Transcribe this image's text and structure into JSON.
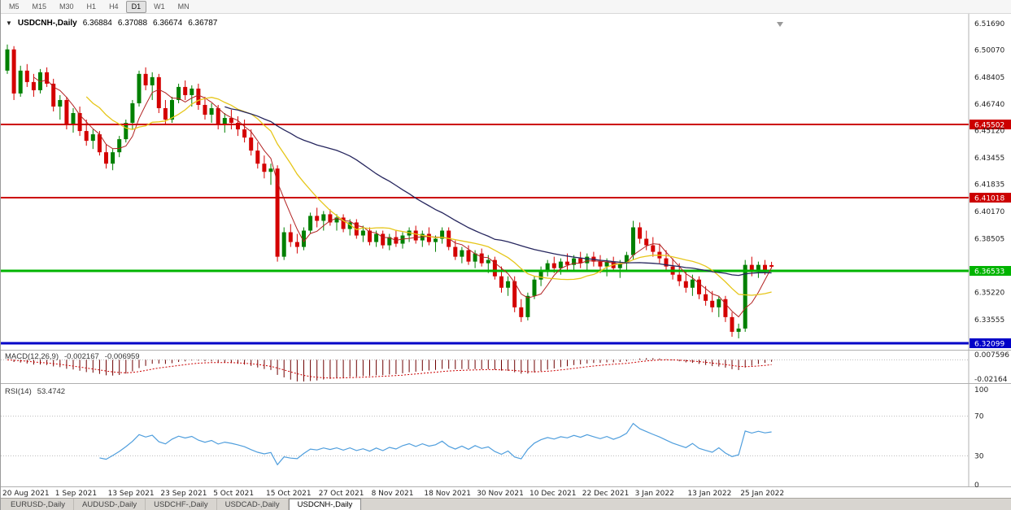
{
  "toolbar": {
    "timeframes": [
      "M5",
      "M15",
      "M30",
      "H1",
      "H4",
      "D1",
      "W1",
      "MN"
    ],
    "active": "D1"
  },
  "quote_header": {
    "expander": "▼",
    "symbol": "USDCNH-,Daily",
    "open": "6.36884",
    "high": "6.37088",
    "low": "6.36674",
    "close": "6.36787"
  },
  "price_axis": {
    "ticks": [
      "6.51690",
      "6.50070",
      "6.48405",
      "6.46740",
      "6.45120",
      "6.43455",
      "6.41835",
      "6.40170",
      "6.38505",
      "6.35220",
      "6.33555"
    ]
  },
  "indicators": {
    "macd": {
      "label": "MACD(12,26,9)",
      "value_main": "-0.002167",
      "value_signal": "-0.006959",
      "axis_max": "0.007596",
      "axis_min": "-0.02164"
    },
    "rsi": {
      "label": "RSI(14)",
      "value": "53.4742",
      "axis_labels": [
        "100",
        "70",
        "30",
        "0"
      ],
      "levels": [
        70,
        30
      ]
    }
  },
  "tabs": {
    "items": [
      "EURUSD-,Daily",
      "AUDUSD-,Daily",
      "USDCHF-,Daily",
      "USDCAD-,Daily",
      "USDCNH-,Daily"
    ],
    "active": "USDCNH-,Daily"
  },
  "chart_data": {
    "type": "candlestick",
    "symbol": "USDCNH",
    "timeframe": "Daily",
    "y_range": [
      6.3175,
      6.5218
    ],
    "x_labels": [
      "20 Aug 2021",
      "1 Sep 2021",
      "13 Sep 2021",
      "23 Sep 2021",
      "5 Oct 2021",
      "15 Oct 2021",
      "27 Oct 2021",
      "8 Nov 2021",
      "18 Nov 2021",
      "30 Nov 2021",
      "10 Dec 2021",
      "22 Dec 2021",
      "3 Jan 2022",
      "13 Jan 2022",
      "25 Jan 2022"
    ],
    "label_every": 8,
    "levels": [
      {
        "price": 6.45502,
        "label": "6.45502",
        "color": "#CC0000",
        "width": 2
      },
      {
        "price": 6.41018,
        "label": "6.41018",
        "color": "#CC0000",
        "width": 2
      },
      {
        "price": 6.36533,
        "label": "6.36533",
        "color": "#00B400",
        "width": 3
      },
      {
        "price": 6.32099,
        "label": "6.32099",
        "color": "#0000C8",
        "width": 3
      }
    ],
    "moving_averages": [
      {
        "period": 5,
        "color": "#B22222",
        "width": 1
      },
      {
        "period": 13,
        "color": "#E6C619",
        "width": 1.3
      },
      {
        "period": 34,
        "color": "#26265E",
        "width": 1.3
      }
    ],
    "macd_range": [
      -0.0216,
      0.0076
    ],
    "colors": {
      "up": "#008000",
      "down": "#D40000",
      "macd_hist": "#6E0000",
      "macd_signal": "#CC0000",
      "rsi": "#4F9EDD",
      "grid_dotted": "#BBBBBB",
      "axis_text": "#222222",
      "badge_text": "#FFFFFF"
    },
    "ohlc": [
      [
        6.488,
        6.504,
        6.486,
        6.501
      ],
      [
        6.501,
        6.503,
        6.47,
        6.474
      ],
      [
        6.474,
        6.491,
        6.472,
        6.488
      ],
      [
        6.488,
        6.492,
        6.478,
        6.481
      ],
      [
        6.481,
        6.486,
        6.472,
        6.476
      ],
      [
        6.476,
        6.489,
        6.474,
        6.487
      ],
      [
        6.487,
        6.49,
        6.478,
        6.48
      ],
      [
        6.48,
        6.483,
        6.463,
        6.466
      ],
      [
        6.466,
        6.473,
        6.458,
        6.47
      ],
      [
        6.47,
        6.472,
        6.452,
        6.455
      ],
      [
        6.455,
        6.465,
        6.45,
        6.462
      ],
      [
        6.462,
        6.466,
        6.448,
        6.451
      ],
      [
        6.451,
        6.458,
        6.442,
        6.445
      ],
      [
        6.445,
        6.452,
        6.44,
        6.449
      ],
      [
        6.449,
        6.451,
        6.436,
        6.438
      ],
      [
        6.438,
        6.443,
        6.428,
        6.431
      ],
      [
        6.431,
        6.44,
        6.427,
        6.438
      ],
      [
        6.438,
        6.448,
        6.435,
        6.446
      ],
      [
        6.446,
        6.458,
        6.444,
        6.456
      ],
      [
        6.456,
        6.47,
        6.452,
        6.468
      ],
      [
        6.468,
        6.488,
        6.466,
        6.486
      ],
      [
        6.486,
        6.49,
        6.476,
        6.479
      ],
      [
        6.479,
        6.487,
        6.47,
        6.484
      ],
      [
        6.484,
        6.486,
        6.462,
        6.465
      ],
      [
        6.465,
        6.47,
        6.455,
        6.458
      ],
      [
        6.458,
        6.472,
        6.456,
        6.47
      ],
      [
        6.47,
        6.48,
        6.468,
        6.478
      ],
      [
        6.478,
        6.482,
        6.47,
        6.473
      ],
      [
        6.473,
        6.479,
        6.466,
        6.477
      ],
      [
        6.477,
        6.48,
        6.464,
        6.467
      ],
      [
        6.467,
        6.472,
        6.458,
        6.461
      ],
      [
        6.461,
        6.468,
        6.456,
        6.465
      ],
      [
        6.465,
        6.467,
        6.452,
        6.455
      ],
      [
        6.455,
        6.462,
        6.45,
        6.459
      ],
      [
        6.459,
        6.464,
        6.452,
        6.456
      ],
      [
        6.456,
        6.46,
        6.448,
        6.452
      ],
      [
        6.452,
        6.458,
        6.444,
        6.447
      ],
      [
        6.447,
        6.452,
        6.436,
        6.439
      ],
      [
        6.439,
        6.444,
        6.428,
        6.431
      ],
      [
        6.431,
        6.436,
        6.422,
        6.426
      ],
      [
        6.426,
        6.431,
        6.418,
        6.428
      ],
      [
        6.428,
        6.43,
        6.371,
        6.374
      ],
      [
        6.374,
        6.392,
        6.372,
        6.389
      ],
      [
        6.389,
        6.394,
        6.38,
        6.383
      ],
      [
        6.383,
        6.388,
        6.376,
        6.38
      ],
      [
        6.38,
        6.392,
        6.378,
        6.39
      ],
      [
        6.39,
        6.401,
        6.388,
        6.399
      ],
      [
        6.399,
        6.404,
        6.392,
        6.396
      ],
      [
        6.396,
        6.402,
        6.39,
        6.4
      ],
      [
        6.4,
        6.403,
        6.393,
        6.395
      ],
      [
        6.395,
        6.4,
        6.39,
        6.398
      ],
      [
        6.398,
        6.4,
        6.389,
        6.391
      ],
      [
        6.391,
        6.397,
        6.387,
        6.395
      ],
      [
        6.395,
        6.397,
        6.385,
        6.387
      ],
      [
        6.387,
        6.393,
        6.383,
        6.39
      ],
      [
        6.39,
        6.392,
        6.381,
        6.383
      ],
      [
        6.383,
        6.39,
        6.38,
        6.388
      ],
      [
        6.388,
        6.39,
        6.379,
        6.381
      ],
      [
        6.381,
        6.388,
        6.378,
        6.386
      ],
      [
        6.386,
        6.39,
        6.38,
        6.382
      ],
      [
        6.382,
        6.389,
        6.379,
        6.387
      ],
      [
        6.387,
        6.392,
        6.383,
        6.39
      ],
      [
        6.39,
        6.393,
        6.382,
        6.384
      ],
      [
        6.384,
        6.39,
        6.38,
        6.388
      ],
      [
        6.388,
        6.392,
        6.381,
        6.383
      ],
      [
        6.383,
        6.387,
        6.377,
        6.385
      ],
      [
        6.385,
        6.392,
        6.382,
        6.39
      ],
      [
        6.39,
        6.392,
        6.378,
        6.38
      ],
      [
        6.38,
        6.384,
        6.372,
        6.374
      ],
      [
        6.374,
        6.38,
        6.37,
        6.378
      ],
      [
        6.378,
        6.381,
        6.369,
        6.371
      ],
      [
        6.371,
        6.378,
        6.367,
        6.376
      ],
      [
        6.376,
        6.379,
        6.368,
        6.37
      ],
      [
        6.37,
        6.375,
        6.364,
        6.372
      ],
      [
        6.372,
        6.374,
        6.36,
        6.362
      ],
      [
        6.362,
        6.368,
        6.352,
        6.355
      ],
      [
        6.355,
        6.362,
        6.35,
        6.359
      ],
      [
        6.359,
        6.362,
        6.34,
        6.343
      ],
      [
        6.343,
        6.348,
        6.334,
        6.337
      ],
      [
        6.337,
        6.352,
        6.335,
        6.35
      ],
      [
        6.35,
        6.362,
        6.348,
        6.36
      ],
      [
        6.36,
        6.368,
        6.356,
        6.366
      ],
      [
        6.366,
        6.372,
        6.362,
        6.37
      ],
      [
        6.37,
        6.374,
        6.364,
        6.367
      ],
      [
        6.367,
        6.373,
        6.363,
        6.371
      ],
      [
        6.371,
        6.376,
        6.366,
        6.369
      ],
      [
        6.369,
        6.375,
        6.365,
        6.373
      ],
      [
        6.373,
        6.377,
        6.367,
        6.37
      ],
      [
        6.37,
        6.376,
        6.366,
        6.374
      ],
      [
        6.374,
        6.377,
        6.368,
        6.371
      ],
      [
        6.371,
        6.375,
        6.364,
        6.368
      ],
      [
        6.368,
        6.373,
        6.362,
        6.371
      ],
      [
        6.371,
        6.374,
        6.365,
        6.367
      ],
      [
        6.367,
        6.372,
        6.361,
        6.37
      ],
      [
        6.37,
        6.377,
        6.366,
        6.375
      ],
      [
        6.375,
        6.396,
        6.372,
        6.392
      ],
      [
        6.392,
        6.395,
        6.382,
        6.385
      ],
      [
        6.385,
        6.39,
        6.378,
        6.381
      ],
      [
        6.381,
        6.386,
        6.374,
        6.377
      ],
      [
        6.377,
        6.382,
        6.37,
        6.373
      ],
      [
        6.373,
        6.378,
        6.365,
        6.368
      ],
      [
        6.368,
        6.373,
        6.36,
        6.363
      ],
      [
        6.363,
        6.37,
        6.356,
        6.359
      ],
      [
        6.359,
        6.365,
        6.352,
        6.355
      ],
      [
        6.355,
        6.363,
        6.35,
        6.36
      ],
      [
        6.36,
        6.362,
        6.348,
        6.351
      ],
      [
        6.351,
        6.356,
        6.344,
        6.347
      ],
      [
        6.347,
        6.353,
        6.34,
        6.343
      ],
      [
        6.343,
        6.35,
        6.337,
        6.348
      ],
      [
        6.348,
        6.35,
        6.334,
        6.337
      ],
      [
        6.337,
        6.34,
        6.325,
        6.328
      ],
      [
        6.328,
        6.333,
        6.324,
        6.33
      ],
      [
        6.33,
        6.372,
        6.328,
        6.369
      ],
      [
        6.369,
        6.374,
        6.362,
        6.365
      ],
      [
        6.365,
        6.371,
        6.361,
        6.369
      ],
      [
        6.369,
        6.372,
        6.363,
        6.366
      ],
      [
        6.36884,
        6.37088,
        6.36674,
        6.36787
      ]
    ]
  }
}
